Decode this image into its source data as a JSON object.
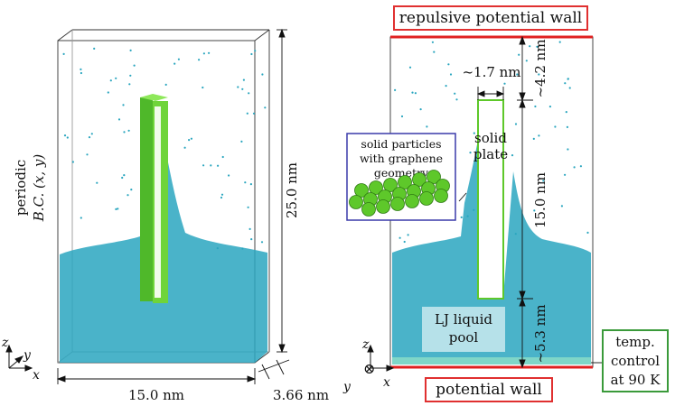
{
  "left_panel": {
    "bc_line1": "periodic",
    "bc_line2": "B.C. (x, y)",
    "height_label": "25.0 nm",
    "width_label": "15.0 nm",
    "depth_label": "3.66 nm",
    "axes": {
      "z": "z",
      "y": "y",
      "x": "x"
    }
  },
  "right_panel": {
    "top_wall_label": "repulsive potential wall",
    "bottom_wall_label": "potential wall",
    "gap_top_label": "~4.2 nm",
    "plate_thickness_label": "~1.7 nm",
    "plate_height_label": "15.0 nm",
    "gap_bottom_label": "~5.3 nm",
    "plate_line1": "solid",
    "plate_line2": "plate",
    "pool_line1": "LJ liquid",
    "pool_line2": "pool",
    "inset_line1": "solid particles",
    "inset_line2": "with graphene",
    "inset_line3": "geometry",
    "temp_line1": "temp.",
    "temp_line2": "control",
    "temp_line3": "at 90 K",
    "axes": {
      "z": "z",
      "y": "y",
      "x": "x",
      "y_symbol": "⊗"
    }
  },
  "colors": {
    "liquid": "#2aa6bf",
    "solid": "#5ec82a",
    "wall": "#e02020",
    "inset_border": "#3a3aaa",
    "temp_border": "#3a9a3a",
    "label_border": "#e03030"
  }
}
